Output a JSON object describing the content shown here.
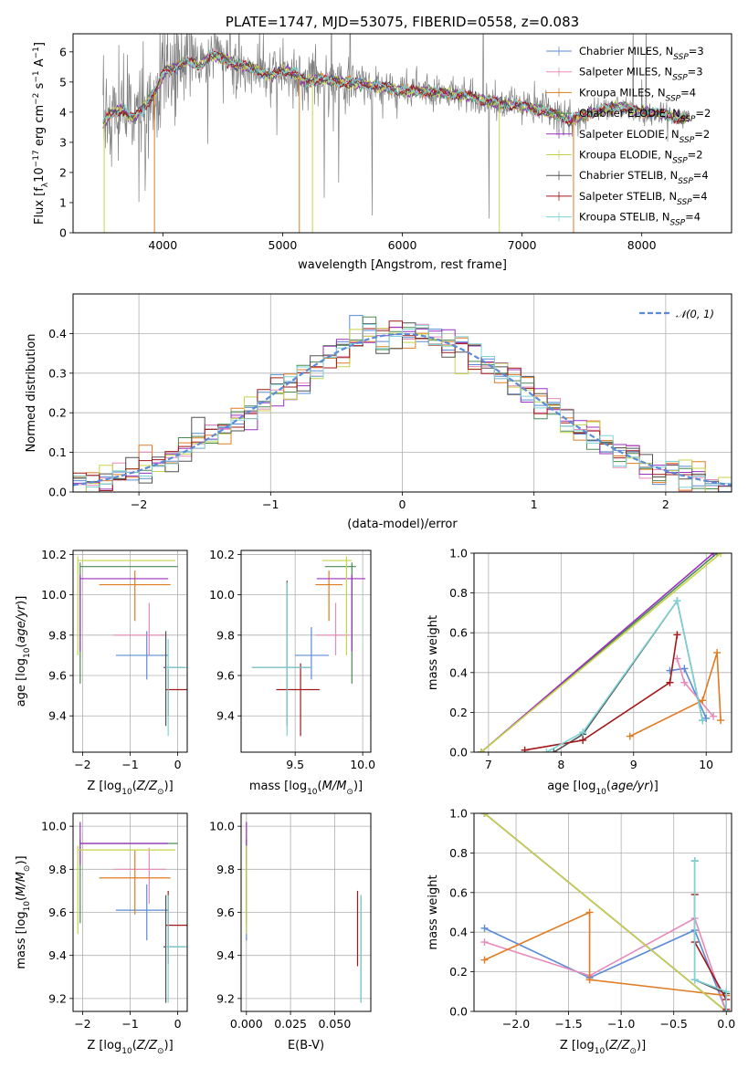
{
  "colors": {
    "Chabrier MILES": "#5b8bd6",
    "Salpeter MILES": "#e889b8",
    "Kroupa MILES": "#e07b22",
    "Chabrier ELODIE": "#4a8a52",
    "Salpeter ELODIE": "#9b30c0",
    "Kroupa ELODIE": "#c6d44a",
    "Chabrier STELIB": "#505050",
    "Salpeter STELIB": "#a01818",
    "Kroupa STELIB": "#7dd3d6",
    "observed": "#808080",
    "normal": "#5b8bd6"
  },
  "chart_data": [
    {
      "id": "spectrum",
      "type": "line",
      "title": "PLATE=1747, MJD=53075, FIBERID=0558, z=0.083",
      "xlabel": "wavelength [Angstrom, rest frame]",
      "ylabel": "Flux [f_λ 10^-17 erg cm^-2 s^-1 A^-1]",
      "xlim": [
        3250,
        8750
      ],
      "ylim": [
        0,
        6.6
      ],
      "xticks": [
        4000,
        5000,
        6000,
        7000,
        8000
      ],
      "yticks": [
        0,
        1,
        2,
        3,
        4,
        5,
        6
      ],
      "grid": false,
      "legend_position": "top-right",
      "legend": [
        {
          "model": "Chabrier MILES",
          "text": "Chabrier MILES, N",
          "sub": "SSP",
          "tail": "=3"
        },
        {
          "model": "Salpeter MILES",
          "text": "Salpeter MILES, N",
          "sub": "SSP",
          "tail": "=3"
        },
        {
          "model": "Kroupa MILES",
          "text": "Kroupa MILES, N",
          "sub": "SSP",
          "tail": "=4"
        },
        {
          "model": "Chabrier ELODIE",
          "text": "Chabrier ELODIE, N",
          "sub": "SSP",
          "tail": "=2"
        },
        {
          "model": "Salpeter ELODIE",
          "text": "Salpeter ELODIE, N",
          "sub": "SSP",
          "tail": "=2"
        },
        {
          "model": "Kroupa ELODIE",
          "text": "Kroupa ELODIE, N",
          "sub": "SSP",
          "tail": "=2"
        },
        {
          "model": "Chabrier STELIB",
          "text": "Chabrier STELIB, N",
          "sub": "SSP",
          "tail": "=4"
        },
        {
          "model": "Salpeter STELIB",
          "text": "Salpeter STELIB, N",
          "sub": "SSP",
          "tail": "=4"
        },
        {
          "model": "Kroupa STELIB",
          "text": "Kroupa STELIB, N",
          "sub": "SSP",
          "tail": "=4"
        }
      ],
      "continuum_knots": {
        "x": [
          3500,
          3550,
          3650,
          3750,
          3850,
          3950,
          4000,
          4100,
          4200,
          4300,
          4400,
          4500,
          4600,
          4700,
          4800,
          4900,
          5000,
          5100,
          5200,
          5300,
          5500,
          5700,
          5900,
          6000,
          6200,
          6400,
          6600,
          6800,
          7000,
          7200,
          7300,
          7400,
          7500,
          7600,
          7700,
          7800,
          7900,
          8000,
          8100,
          8200,
          8300,
          8400
        ],
        "y": [
          3.6,
          3.9,
          4.1,
          3.8,
          4.2,
          4.8,
          5.3,
          5.5,
          5.7,
          5.5,
          5.9,
          5.8,
          5.6,
          5.5,
          5.4,
          5.2,
          5.4,
          5.3,
          5.0,
          5.1,
          5.0,
          4.9,
          4.8,
          4.7,
          4.7,
          4.6,
          4.5,
          4.3,
          4.2,
          4.0,
          3.9,
          3.7,
          3.9,
          4.0,
          4.1,
          4.2,
          4.1,
          4.0,
          4.0,
          3.9,
          3.8,
          3.85
        ]
      },
      "spectrum_end": 8400
    },
    {
      "id": "residuals",
      "type": "bar",
      "xlabel": "(data-model)/error",
      "ylabel": "Normed distribution",
      "xlim": [
        -2.5,
        2.5
      ],
      "ylim": [
        0,
        0.5
      ],
      "xticks": [
        -2,
        -1,
        0,
        1,
        2
      ],
      "yticks": [
        0.0,
        0.1,
        0.2,
        0.3,
        0.4
      ],
      "grid": true,
      "bin_width": 0.1,
      "legend_position": "top-right",
      "normal_label": "𝒩(0, 1)"
    },
    {
      "id": "age-Z",
      "type": "scatter",
      "xlabel": "Z [log10(Z/Z⊙)]",
      "ylabel": "age [log10(age/yr)]",
      "xlim": [
        -2.2,
        0.2
      ],
      "ylim": [
        9.22,
        10.22
      ],
      "xticks": [
        -2,
        -1,
        0
      ],
      "yticks": [
        9.4,
        9.6,
        9.8,
        10.0,
        10.2
      ],
      "grid": true,
      "points": [
        {
          "model": "Chabrier MILES",
          "x": -0.65,
          "xlo": -1.3,
          "xhi": -0.2,
          "y": 9.7,
          "ylo": 9.58,
          "yhi": 9.82
        },
        {
          "model": "Salpeter MILES",
          "x": -0.6,
          "xlo": -1.35,
          "xhi": -0.25,
          "y": 9.8,
          "ylo": 9.7,
          "yhi": 9.96
        },
        {
          "model": "Kroupa MILES",
          "x": -0.9,
          "xlo": -1.65,
          "xhi": -0.15,
          "y": 10.05,
          "ylo": 9.87,
          "yhi": 10.12
        },
        {
          "model": "Chabrier ELODIE",
          "x": -2.05,
          "xlo": -2.05,
          "xhi": 0.0,
          "y": 10.14,
          "ylo": 9.56,
          "yhi": 10.16
        },
        {
          "model": "Salpeter ELODIE",
          "x": -2.05,
          "xlo": -2.05,
          "xhi": -0.2,
          "y": 10.08,
          "ylo": 9.72,
          "yhi": 10.1
        },
        {
          "model": "Kroupa ELODIE",
          "x": -2.1,
          "xlo": -2.1,
          "xhi": -0.05,
          "y": 10.17,
          "ylo": 9.7,
          "yhi": 10.19
        },
        {
          "model": "Chabrier STELIB",
          "x": -0.25,
          "xlo": -0.3,
          "xhi": 0.15,
          "y": 9.64,
          "ylo": 9.35,
          "yhi": 9.82
        },
        {
          "model": "Salpeter STELIB",
          "x": -0.2,
          "xlo": -0.25,
          "xhi": 0.2,
          "y": 9.53,
          "ylo": 9.4,
          "yhi": 9.63
        },
        {
          "model": "Kroupa STELIB",
          "x": -0.2,
          "xlo": -0.25,
          "xhi": 0.2,
          "y": 9.64,
          "ylo": 9.3,
          "yhi": 9.78
        }
      ]
    },
    {
      "id": "age-mass",
      "type": "scatter",
      "xlabel": "mass [log10(M/M⊙)]",
      "xlim": [
        9.1,
        10.06
      ],
      "ylim": [
        9.22,
        10.22
      ],
      "xticks": [
        9.5,
        10.0
      ],
      "yticks": [
        9.4,
        9.6,
        9.8,
        10.0,
        10.2
      ],
      "grid": true,
      "points": [
        {
          "model": "Chabrier MILES",
          "x": 9.62,
          "xlo": 9.5,
          "xhi": 9.75,
          "y": 9.7,
          "ylo": 9.58,
          "yhi": 9.84
        },
        {
          "model": "Salpeter MILES",
          "x": 9.8,
          "xlo": 9.65,
          "xhi": 9.9,
          "y": 9.8,
          "ylo": 9.7,
          "yhi": 9.96
        },
        {
          "model": "Kroupa MILES",
          "x": 9.75,
          "xlo": 9.65,
          "xhi": 9.85,
          "y": 10.05,
          "ylo": 9.87,
          "yhi": 10.12
        },
        {
          "model": "Chabrier ELODIE",
          "x": 9.92,
          "xlo": 9.72,
          "xhi": 9.95,
          "y": 10.14,
          "ylo": 9.56,
          "yhi": 10.16
        },
        {
          "model": "Salpeter ELODIE",
          "x": 9.92,
          "xlo": 9.66,
          "xhi": 10.02,
          "y": 10.08,
          "ylo": 9.72,
          "yhi": 10.1
        },
        {
          "model": "Kroupa ELODIE",
          "x": 9.88,
          "xlo": 9.7,
          "xhi": 9.92,
          "y": 10.17,
          "ylo": 9.7,
          "yhi": 10.19
        },
        {
          "model": "Chabrier STELIB",
          "x": 9.44,
          "xlo": 9.18,
          "xhi": 9.62,
          "y": 9.64,
          "ylo": 9.35,
          "yhi": 10.07
        },
        {
          "model": "Salpeter STELIB",
          "x": 9.54,
          "xlo": 9.36,
          "xhi": 9.68,
          "y": 9.53,
          "ylo": 9.3,
          "yhi": 9.66
        },
        {
          "model": "Kroupa STELIB",
          "x": 9.44,
          "xlo": 9.18,
          "xhi": 9.62,
          "y": 9.64,
          "ylo": 9.3,
          "yhi": 10.06
        }
      ]
    },
    {
      "id": "weight-age",
      "type": "line",
      "xlabel": "age [log10(age/yr)]",
      "ylabel": "mass weight",
      "xlim": [
        6.8,
        10.35
      ],
      "ylim": [
        0,
        1
      ],
      "xticks": [
        7,
        8,
        9,
        10
      ],
      "yticks": [
        0.0,
        0.2,
        0.4,
        0.6,
        0.8,
        1.0
      ],
      "grid": true,
      "series": [
        {
          "model": "Chabrier MILES",
          "x": [
            9.5,
            9.7,
            10.0
          ],
          "y": [
            0.41,
            0.42,
            0.17
          ]
        },
        {
          "model": "Salpeter MILES",
          "x": [
            9.6,
            9.7,
            10.1
          ],
          "y": [
            0.47,
            0.35,
            0.18
          ]
        },
        {
          "model": "Kroupa MILES",
          "x": [
            8.95,
            9.95,
            10.15,
            10.2
          ],
          "y": [
            0.08,
            0.26,
            0.5,
            0.16
          ]
        },
        {
          "model": "Chabrier ELODIE",
          "x": [
            6.9,
            10.15
          ],
          "y": [
            0.0,
            1.0
          ]
        },
        {
          "model": "Salpeter ELODIE",
          "x": [
            6.9,
            10.1
          ],
          "y": [
            0.0,
            1.0
          ]
        },
        {
          "model": "Kroupa ELODIE",
          "x": [
            6.9,
            10.2
          ],
          "y": [
            0.0,
            1.0
          ]
        },
        {
          "model": "Chabrier STELIB",
          "x": [
            7.9,
            8.3,
            9.6,
            9.95
          ],
          "y": [
            0.0,
            0.09,
            0.76,
            0.16
          ]
        },
        {
          "model": "Salpeter STELIB",
          "x": [
            7.5,
            8.3,
            9.5,
            9.6
          ],
          "y": [
            0.01,
            0.06,
            0.35,
            0.59
          ]
        },
        {
          "model": "Kroupa STELIB",
          "x": [
            7.8,
            8.3,
            9.6,
            9.95
          ],
          "y": [
            0.0,
            0.1,
            0.76,
            0.16
          ]
        }
      ]
    },
    {
      "id": "mass-Z",
      "type": "scatter",
      "xlabel": "Z [log10(Z/Z⊙)]",
      "ylabel": "mass [log10(M/M⊙)]",
      "xlim": [
        -2.2,
        0.2
      ],
      "ylim": [
        9.14,
        10.06
      ],
      "xticks": [
        -2,
        -1,
        0
      ],
      "yticks": [
        9.2,
        9.4,
        9.6,
        9.8,
        10.0
      ],
      "grid": true,
      "points": [
        {
          "model": "Chabrier MILES",
          "x": -0.65,
          "xlo": -1.3,
          "xhi": -0.2,
          "y": 9.61,
          "ylo": 9.47,
          "yhi": 9.73
        },
        {
          "model": "Salpeter MILES",
          "x": -0.6,
          "xlo": -1.35,
          "xhi": -0.25,
          "y": 9.8,
          "ylo": 9.64,
          "yhi": 9.9
        },
        {
          "model": "Kroupa MILES",
          "x": -0.9,
          "xlo": -1.65,
          "xhi": -0.15,
          "y": 9.76,
          "ylo": 9.59,
          "yhi": 9.89
        },
        {
          "model": "Chabrier ELODIE",
          "x": -2.05,
          "xlo": -2.05,
          "xhi": 0.0,
          "y": 9.92,
          "ylo": 9.55,
          "yhi": 9.94
        },
        {
          "model": "Salpeter ELODIE",
          "x": -2.05,
          "xlo": -2.05,
          "xhi": -0.2,
          "y": 9.92,
          "ylo": 9.82,
          "yhi": 10.02
        },
        {
          "model": "Kroupa ELODIE",
          "x": -2.1,
          "xlo": -2.1,
          "xhi": -0.05,
          "y": 9.89,
          "ylo": 9.5,
          "yhi": 9.91
        },
        {
          "model": "Chabrier STELIB",
          "x": -0.25,
          "xlo": -0.3,
          "xhi": 0.15,
          "y": 9.44,
          "ylo": 9.18,
          "yhi": 9.68
        },
        {
          "model": "Salpeter STELIB",
          "x": -0.2,
          "xlo": -0.25,
          "xhi": 0.2,
          "y": 9.54,
          "ylo": 9.36,
          "yhi": 9.7
        },
        {
          "model": "Kroupa STELIB",
          "x": -0.2,
          "xlo": -0.25,
          "xhi": 0.2,
          "y": 9.44,
          "ylo": 9.18,
          "yhi": 9.68
        }
      ]
    },
    {
      "id": "mass-EBV",
      "type": "scatter",
      "xlabel": "E(B-V)",
      "xlim": [
        -0.003,
        0.0705
      ],
      "ylim": [
        9.14,
        10.06
      ],
      "xticks": [
        0.0,
        0.025,
        0.05
      ],
      "xticklabels": [
        "0.000",
        "0.025",
        "0.050"
      ],
      "yticks": [
        9.2,
        9.4,
        9.6,
        9.8,
        10.0
      ],
      "grid": true,
      "points": [
        {
          "model": "Chabrier MILES",
          "x": 0.0,
          "xlo": 0.0,
          "xhi": 0.0,
          "y": 9.61,
          "ylo": 9.47,
          "yhi": 9.73
        },
        {
          "model": "Salpeter MILES",
          "x": 0.0,
          "xlo": 0.0,
          "xhi": 0.0,
          "y": 9.8,
          "ylo": 9.64,
          "yhi": 9.9
        },
        {
          "model": "Kroupa MILES",
          "x": 0.0,
          "xlo": 0.0,
          "xhi": 0.0,
          "y": 9.76,
          "ylo": 9.59,
          "yhi": 9.89
        },
        {
          "model": "Chabrier ELODIE",
          "x": 0.0,
          "xlo": 0.0,
          "xhi": 0.0,
          "y": 9.92,
          "ylo": 9.55,
          "yhi": 9.94
        },
        {
          "model": "Salpeter ELODIE",
          "x": 0.0,
          "xlo": 0.0,
          "xhi": 0.0,
          "y": 9.92,
          "ylo": 9.82,
          "yhi": 10.02
        },
        {
          "model": "Kroupa ELODIE",
          "x": 0.0,
          "xlo": 0.0,
          "xhi": 0.0,
          "y": 9.89,
          "ylo": 9.5,
          "yhi": 9.91
        },
        {
          "model": "Chabrier STELIB",
          "x": 0.065,
          "xlo": 0.065,
          "xhi": 0.065,
          "y": 9.44,
          "ylo": 9.18,
          "yhi": 9.68
        },
        {
          "model": "Salpeter STELIB",
          "x": 0.063,
          "xlo": 0.063,
          "xhi": 0.063,
          "y": 9.54,
          "ylo": 9.35,
          "yhi": 9.7
        },
        {
          "model": "Kroupa STELIB",
          "x": 0.065,
          "xlo": 0.065,
          "xhi": 0.065,
          "y": 9.44,
          "ylo": 9.18,
          "yhi": 9.68
        }
      ]
    },
    {
      "id": "weight-Z",
      "type": "line",
      "xlabel": "Z [log10(Z/Z⊙)]",
      "ylabel": "mass weight",
      "xlim": [
        -2.4,
        0.05
      ],
      "ylim": [
        0,
        1
      ],
      "xticks": [
        -2.0,
        -1.5,
        -1.0,
        -0.5,
        0.0
      ],
      "yticks": [
        0.0,
        0.2,
        0.4,
        0.6,
        0.8,
        1.0
      ],
      "grid": true,
      "series": [
        {
          "model": "Chabrier MILES",
          "x": [
            -2.3,
            -1.3,
            -0.3,
            0.0
          ],
          "y": [
            0.42,
            0.17,
            0.41,
            0.0
          ]
        },
        {
          "model": "Salpeter MILES",
          "x": [
            -2.3,
            -1.3,
            -0.3,
            0.0
          ],
          "y": [
            0.35,
            0.18,
            0.47,
            0.0
          ]
        },
        {
          "model": "Kroupa MILES",
          "x": [
            -2.3,
            -1.3,
            -1.3,
            0.0,
            0.0
          ],
          "y": [
            0.26,
            0.5,
            0.16,
            0.08,
            0.0
          ]
        },
        {
          "model": "Chabrier ELODIE",
          "x": [
            -2.3,
            0.0
          ],
          "y": [
            1.0,
            0.0
          ]
        },
        {
          "model": "Salpeter ELODIE",
          "x": [
            -2.3,
            0.0
          ],
          "y": [
            1.0,
            0.0
          ]
        },
        {
          "model": "Kroupa ELODIE",
          "x": [
            -2.3,
            0.0
          ],
          "y": [
            1.0,
            0.0
          ]
        },
        {
          "model": "Chabrier STELIB",
          "x": [
            -0.3,
            -0.3,
            0.0,
            0.0
          ],
          "y": [
            0.76,
            0.16,
            0.09,
            0.0
          ]
        },
        {
          "model": "Salpeter STELIB",
          "x": [
            -0.3,
            -0.3,
            0.0,
            0.0
          ],
          "y": [
            0.59,
            0.35,
            0.06,
            0.01
          ]
        },
        {
          "model": "Kroupa STELIB",
          "x": [
            -0.3,
            -0.3,
            0.0,
            0.0
          ],
          "y": [
            0.76,
            0.16,
            0.1,
            0.0
          ]
        }
      ]
    }
  ]
}
